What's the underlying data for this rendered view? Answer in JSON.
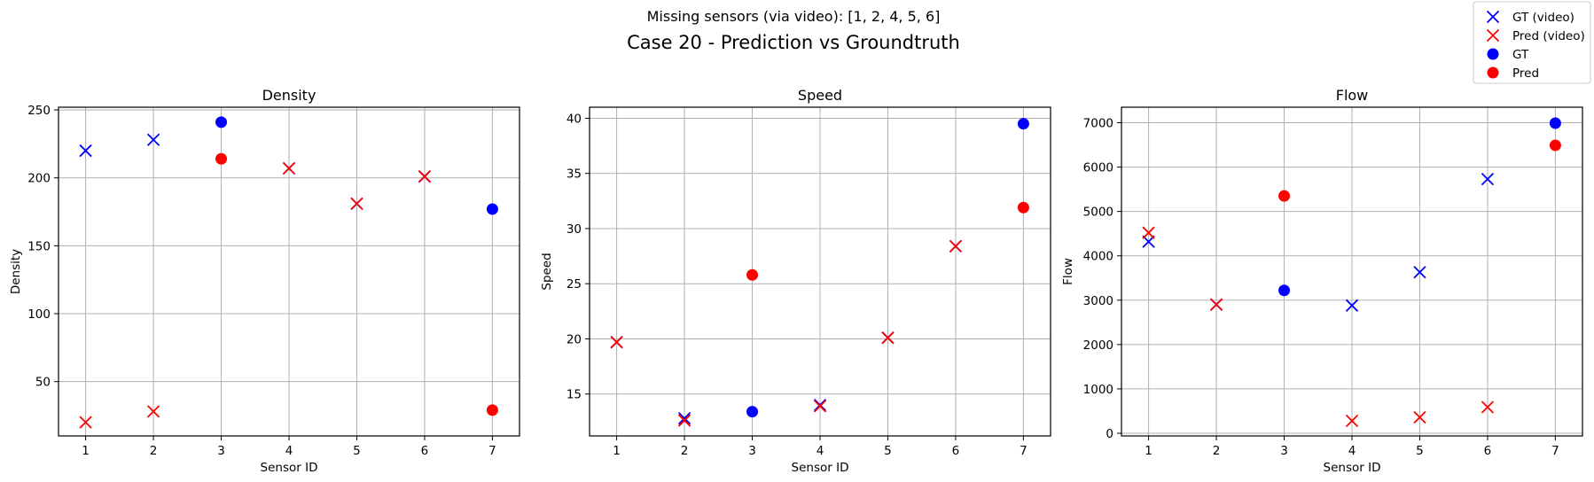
{
  "figure": {
    "suptitle_top": "Missing sensors (via video): [1, 2, 4, 5, 6]",
    "suptitle_main": "Case 20 - Prediction vs Groundtruth"
  },
  "legend": {
    "placement": "top-right",
    "entries": [
      {
        "label": "GT (video)",
        "marker": "x",
        "color": "#0000ff"
      },
      {
        "label": "Pred (video)",
        "marker": "x",
        "color": "#ff0000"
      },
      {
        "label": "GT",
        "marker": "o",
        "color": "#0000ff"
      },
      {
        "label": "Pred",
        "marker": "o",
        "color": "#ff0000"
      }
    ]
  },
  "colors": {
    "gt": "#0000ff",
    "pred": "#ff0000",
    "grid": "#b0b0b0"
  },
  "chart_data": [
    {
      "type": "scatter",
      "title": "Density",
      "xlabel": "Sensor ID",
      "ylabel": "Density",
      "xlim": [
        0.6,
        7.4
      ],
      "ylim": [
        10,
        252
      ],
      "xticks": [
        1,
        2,
        3,
        4,
        5,
        6,
        7
      ],
      "yticks": [
        50,
        100,
        150,
        200,
        250
      ],
      "grid": true,
      "series": [
        {
          "name": "GT (video)",
          "marker": "x",
          "color": "#0000ff",
          "x": [
            1,
            2,
            4,
            5,
            6
          ],
          "y": [
            220,
            228,
            207,
            181,
            201
          ]
        },
        {
          "name": "Pred (video)",
          "marker": "x",
          "color": "#ff0000",
          "x": [
            1,
            2,
            4,
            5,
            6
          ],
          "y": [
            20,
            28,
            207,
            181,
            201
          ]
        },
        {
          "name": "GT",
          "marker": "o",
          "color": "#0000ff",
          "x": [
            3,
            7
          ],
          "y": [
            241,
            177
          ]
        },
        {
          "name": "Pred",
          "marker": "o",
          "color": "#ff0000",
          "x": [
            3,
            7
          ],
          "y": [
            214,
            29
          ]
        }
      ]
    },
    {
      "type": "scatter",
      "title": "Speed",
      "xlabel": "Sensor ID",
      "ylabel": "Speed",
      "xlim": [
        0.6,
        7.4
      ],
      "ylim": [
        11.2,
        41
      ],
      "xticks": [
        1,
        2,
        3,
        4,
        5,
        6,
        7
      ],
      "yticks": [
        15,
        20,
        25,
        30,
        35,
        40
      ],
      "grid": true,
      "series": [
        {
          "name": "GT (video)",
          "marker": "x",
          "color": "#0000ff",
          "x": [
            1,
            2,
            4,
            5,
            6
          ],
          "y": [
            19.7,
            12.8,
            14.0,
            20.1,
            28.4
          ]
        },
        {
          "name": "Pred (video)",
          "marker": "x",
          "color": "#ff0000",
          "x": [
            1,
            2,
            4,
            5,
            6
          ],
          "y": [
            19.7,
            12.6,
            13.9,
            20.1,
            28.4
          ]
        },
        {
          "name": "GT",
          "marker": "o",
          "color": "#0000ff",
          "x": [
            3,
            7
          ],
          "y": [
            13.4,
            39.5
          ]
        },
        {
          "name": "Pred",
          "marker": "o",
          "color": "#ff0000",
          "x": [
            3,
            7
          ],
          "y": [
            25.8,
            31.9
          ]
        }
      ]
    },
    {
      "type": "scatter",
      "title": "Flow",
      "xlabel": "Sensor ID",
      "ylabel": "Flow",
      "xlim": [
        0.6,
        7.4
      ],
      "ylim": [
        -60,
        7350
      ],
      "xticks": [
        1,
        2,
        3,
        4,
        5,
        6,
        7
      ],
      "yticks": [
        0,
        1000,
        2000,
        3000,
        4000,
        5000,
        6000,
        7000
      ],
      "grid": true,
      "series": [
        {
          "name": "GT (video)",
          "marker": "x",
          "color": "#0000ff",
          "x": [
            1,
            2,
            4,
            5,
            6
          ],
          "y": [
            4320,
            2900,
            2880,
            3630,
            5730
          ]
        },
        {
          "name": "Pred (video)",
          "marker": "x",
          "color": "#ff0000",
          "x": [
            1,
            2,
            4,
            5,
            6
          ],
          "y": [
            4520,
            2900,
            280,
            360,
            590
          ]
        },
        {
          "name": "GT",
          "marker": "o",
          "color": "#0000ff",
          "x": [
            3,
            7
          ],
          "y": [
            3220,
            6990
          ]
        },
        {
          "name": "Pred",
          "marker": "o",
          "color": "#ff0000",
          "x": [
            3,
            7
          ],
          "y": [
            5350,
            6490
          ]
        }
      ]
    }
  ]
}
